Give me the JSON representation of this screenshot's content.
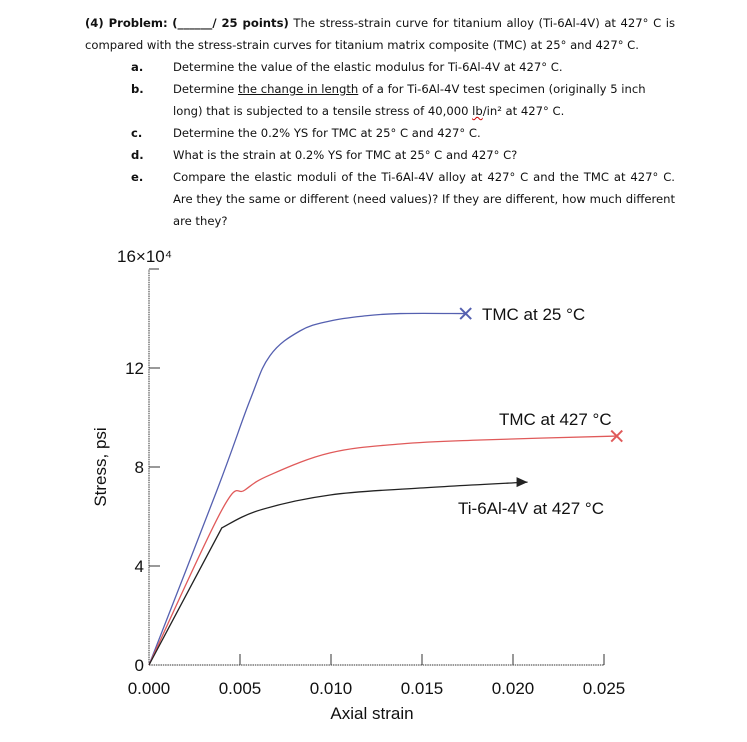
{
  "problem": {
    "number": "(4) Problem:",
    "points_blank": "(______/ 25 points)",
    "intro": "The stress-strain curve for titanium alloy (Ti-6Al-4V) at 427° C is compared with the stress-strain curves for titanium matrix composite (TMC) at 25° and 427° C.",
    "items": [
      {
        "letter": "a.",
        "text": "Determine the value of the elastic modulus for Ti-6Al-4V at 427° C."
      },
      {
        "letter": "b.",
        "pre": "Determine ",
        "underlined": "the change in length",
        "mid": " of a for Ti-6Al-4V test specimen (originally 5 inch long) that is subjected to a tensile stress of 40,000 ",
        "unit_lb": "lb",
        "unit_rest": "/in² at 427° C."
      },
      {
        "letter": "c.",
        "text": "Determine the 0.2% YS for TMC at 25° C and 427° C."
      },
      {
        "letter": "d.",
        "text": "What is the strain at 0.2% YS for TMC at 25° C and 427° C?"
      },
      {
        "letter": "e.",
        "text": "Compare the elastic moduli of the Ti-6Al-4V alloy at 427° C and the TMC at 427° C.  Are they the same or different (need values)?  If they are different, how much different are they?"
      }
    ]
  },
  "chart_data": {
    "type": "line",
    "title": "",
    "xlabel": "Axial strain",
    "ylabel": "Stress, psi",
    "y_multiplier_label": "16×10⁴",
    "y_multiplier": 10000,
    "xlim": [
      0.0,
      0.025
    ],
    "ylim": [
      0,
      16
    ],
    "x_ticks": [
      "0.000",
      "0.005",
      "0.010",
      "0.015",
      "0.020",
      "0.025"
    ],
    "y_ticks": [
      "0",
      "4",
      "8",
      "12",
      "16×10⁴"
    ],
    "grid": false,
    "legend": "inline labels",
    "series": [
      {
        "name": "TMC at 25 °C",
        "color": "#5560b0",
        "end_marker": "x",
        "x": [
          0.0,
          0.00374,
          0.00555,
          0.00665,
          0.0083,
          0.00995,
          0.0118,
          0.0138,
          0.0174
        ],
        "y": [
          0,
          7.07,
          10.7,
          12.5,
          13.5,
          13.9,
          14.1,
          14.2,
          14.2
        ]
      },
      {
        "name": "TMC at 427 °C",
        "color": "#e05a5a",
        "end_marker": "x",
        "x": [
          0.0,
          0.004,
          0.00527,
          0.00665,
          0.00995,
          0.0138,
          0.0182,
          0.0257
        ],
        "y": [
          0,
          6.26,
          7.07,
          7.68,
          8.57,
          8.93,
          9.09,
          9.25
        ]
      },
      {
        "name": "Ti-6Al-4V at 427 °C",
        "color": "#222222",
        "end_marker": "arrow",
        "x": [
          0.0,
          0.004,
          0.0061,
          0.00995,
          0.0149,
          0.0208
        ],
        "y": [
          0,
          5.54,
          6.26,
          6.87,
          7.15,
          7.39
        ]
      }
    ],
    "labels": {
      "tmc25": "TMC at 25 °C",
      "tmc427": "TMC at 427 °C",
      "ti427": "Ti-6Al-4V at 427 °C"
    }
  }
}
